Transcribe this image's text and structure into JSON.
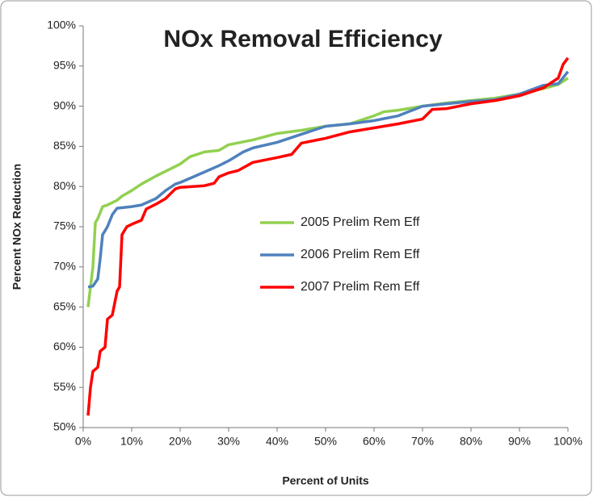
{
  "chart_data": {
    "type": "line",
    "title": "NOx Removal Efficiency",
    "x_label": "Percent of Units",
    "y_label": "Percent NOx Reduction",
    "xlim": [
      0,
      100
    ],
    "ylim": [
      50,
      100
    ],
    "xticks": [
      {
        "value": 0,
        "label": "0%"
      },
      {
        "value": 10,
        "label": "10%"
      },
      {
        "value": 20,
        "label": "20%"
      },
      {
        "value": 30,
        "label": "30%"
      },
      {
        "value": 40,
        "label": "40%"
      },
      {
        "value": 50,
        "label": "50%"
      },
      {
        "value": 60,
        "label": "60%"
      },
      {
        "value": 70,
        "label": "70%"
      },
      {
        "value": 80,
        "label": "80%"
      },
      {
        "value": 90,
        "label": "90%"
      },
      {
        "value": 100,
        "label": "100%"
      }
    ],
    "yticks": [
      {
        "value": 50,
        "label": "50%"
      },
      {
        "value": 55,
        "label": "55%"
      },
      {
        "value": 60,
        "label": "60%"
      },
      {
        "value": 65,
        "label": "65%"
      },
      {
        "value": 70,
        "label": "70%"
      },
      {
        "value": 75,
        "label": "75%"
      },
      {
        "value": 80,
        "label": "80%"
      },
      {
        "value": 85,
        "label": "85%"
      },
      {
        "value": 90,
        "label": "90%"
      },
      {
        "value": 95,
        "label": "95%"
      },
      {
        "value": 100,
        "label": "100%"
      }
    ],
    "grid": false,
    "legend_position": "center",
    "series": [
      {
        "name": "2005 Prelim Rem Eff",
        "color": "#92d050",
        "x": [
          1,
          2,
          2.5,
          3,
          4,
          5,
          7,
          8,
          10,
          12,
          15,
          18,
          20,
          22,
          25,
          28,
          30,
          35,
          40,
          45,
          50,
          55,
          60,
          62,
          65,
          70,
          75,
          80,
          85,
          90,
          95,
          98,
          100
        ],
        "values": [
          65,
          70,
          75.5,
          76,
          77.5,
          77.7,
          78.3,
          78.8,
          79.5,
          80.3,
          81.3,
          82.2,
          82.8,
          83.7,
          84.3,
          84.5,
          85.2,
          85.8,
          86.6,
          87.0,
          87.5,
          87.8,
          88.8,
          89.3,
          89.5,
          90.0,
          90.4,
          90.7,
          91.0,
          91.5,
          92.2,
          92.7,
          93.5
        ]
      },
      {
        "name": "2006 Prelim Rem Eff",
        "color": "#4f81bd",
        "x": [
          1,
          2,
          3,
          3.5,
          4,
          5,
          6,
          7,
          10,
          12,
          15,
          17,
          19,
          20,
          25,
          28,
          30,
          33,
          35,
          40,
          45,
          50,
          55,
          60,
          65,
          70,
          75,
          80,
          85,
          90,
          95,
          98,
          100
        ],
        "values": [
          67.5,
          67.6,
          68.5,
          71,
          74,
          75,
          76.5,
          77.3,
          77.5,
          77.7,
          78.5,
          79.5,
          80.3,
          80.5,
          81.8,
          82.6,
          83.2,
          84.3,
          84.8,
          85.5,
          86.5,
          87.5,
          87.8,
          88.2,
          88.8,
          90.0,
          90.3,
          90.6,
          90.8,
          91.5,
          92.6,
          92.8,
          94.3
        ]
      },
      {
        "name": "2007 Prelim Rem Eff",
        "color": "#ff0000",
        "x": [
          1,
          1.5,
          2,
          3,
          3.5,
          4.5,
          5,
          6,
          7,
          7.5,
          8,
          9,
          10,
          12,
          13,
          15,
          17,
          19,
          20,
          25,
          27,
          28,
          30,
          32,
          35,
          40,
          43,
          45,
          50,
          55,
          60,
          65,
          70,
          72,
          75,
          80,
          85,
          90,
          95,
          97,
          98,
          99,
          100
        ],
        "values": [
          51.5,
          55,
          57,
          57.5,
          59.5,
          60,
          63.5,
          64,
          67,
          67.5,
          74,
          75,
          75.3,
          75.8,
          77.2,
          77.8,
          78.5,
          79.7,
          79.9,
          80.1,
          80.4,
          81.2,
          81.7,
          82.0,
          83.0,
          83.6,
          84.0,
          85.4,
          86.0,
          86.8,
          87.3,
          87.8,
          88.4,
          89.6,
          89.7,
          90.3,
          90.7,
          91.3,
          92.3,
          93.1,
          93.5,
          95.2,
          96.0
        ]
      }
    ]
  }
}
